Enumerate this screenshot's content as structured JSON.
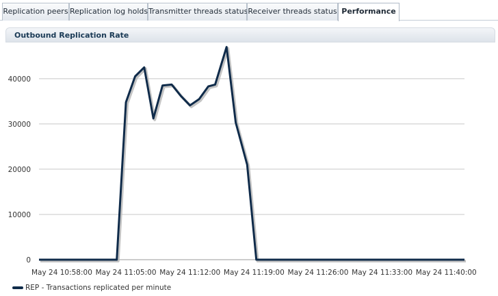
{
  "tabs": [
    {
      "label": "Replication peers",
      "active": false
    },
    {
      "label": "Replication log holds",
      "active": false
    },
    {
      "label": "Transmitter threads status",
      "active": false
    },
    {
      "label": "Receiver threads status",
      "active": false
    },
    {
      "label": "Performance",
      "active": true
    }
  ],
  "panel": {
    "title": "Outbound Replication Rate"
  },
  "chart_data": {
    "type": "line",
    "title": "Outbound Replication Rate",
    "xlabel": "",
    "ylabel": "",
    "ylim": [
      0,
      48000
    ],
    "yticks": [
      0,
      10000,
      20000,
      30000,
      40000
    ],
    "xlim": [
      "May 24 10:55:30",
      "May 24 11:42:00"
    ],
    "xticks": [
      "May 24 10:58:00",
      "May 24 11:05:00",
      "May 24 11:12:00",
      "May 24 11:19:00",
      "May 24 11:26:00",
      "May 24 11:33:00",
      "May 24 11:40:00"
    ],
    "grid": true,
    "legend_position": "bottom-left",
    "colors": {
      "line": "#0f2b4a",
      "shadow": "#b5b5b5",
      "grid": "#c8c8c8"
    },
    "series": [
      {
        "name": "REP - Transactions replicated per minute",
        "points": [
          [
            "May 24 10:55:30",
            0
          ],
          [
            "May 24 11:04:00",
            0
          ],
          [
            "May 24 11:05:00",
            34800
          ],
          [
            "May 24 11:06:00",
            40500
          ],
          [
            "May 24 11:07:00",
            42500
          ],
          [
            "May 24 11:08:00",
            31200
          ],
          [
            "May 24 11:09:00",
            38500
          ],
          [
            "May 24 11:10:00",
            38700
          ],
          [
            "May 24 11:11:00",
            36200
          ],
          [
            "May 24 11:12:00",
            34100
          ],
          [
            "May 24 11:13:00",
            35500
          ],
          [
            "May 24 11:14:00",
            38300
          ],
          [
            "May 24 11:14:45",
            38700
          ],
          [
            "May 24 11:16:00",
            47000
          ],
          [
            "May 24 11:17:00",
            30300
          ],
          [
            "May 24 11:18:15",
            21000
          ],
          [
            "May 24 11:19:15",
            0
          ],
          [
            "May 24 11:42:00",
            0
          ]
        ]
      }
    ]
  }
}
